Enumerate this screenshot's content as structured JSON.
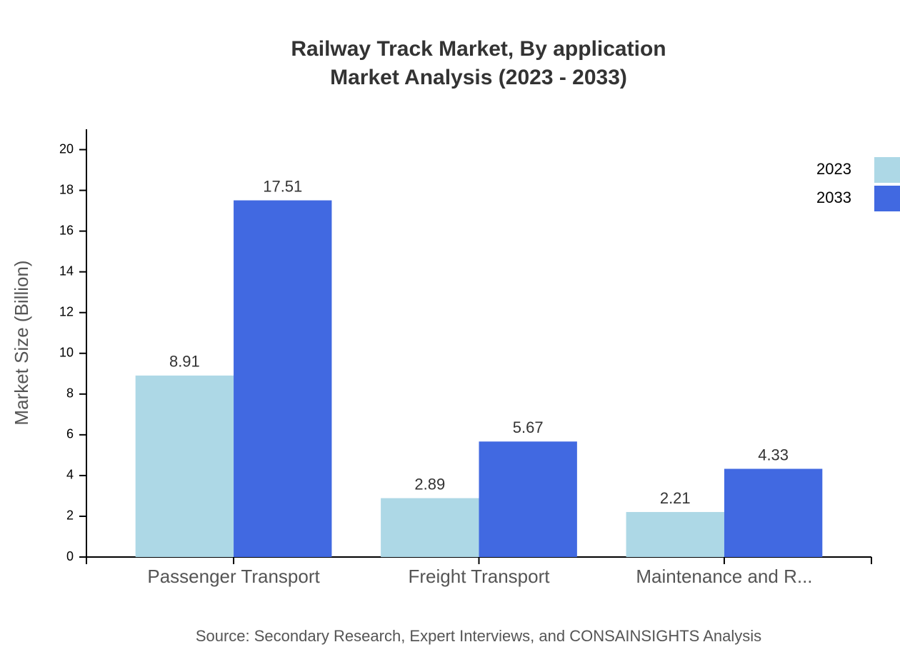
{
  "chart_data": {
    "type": "bar",
    "title": "Railway Track Market, By application",
    "subtitle": "Market Analysis (2023 - 2033)",
    "y_label": "Market Size (Billion)",
    "source": "Source: Secondary Research, Expert Interviews, and CONSAINSIGHTS Analysis",
    "categories": [
      "Passenger Transport",
      "Freight Transport",
      "Maintenance and R..."
    ],
    "series": [
      {
        "name": "2023",
        "color": "#add8e6",
        "values": [
          8.91,
          2.89,
          2.21
        ]
      },
      {
        "name": "2033",
        "color": "#4169e1",
        "values": [
          17.51,
          5.67,
          4.33
        ]
      }
    ],
    "ylim": [
      0,
      21
    ],
    "yticks": [
      0,
      2,
      4,
      6,
      8,
      10,
      12,
      14,
      16,
      18,
      20
    ],
    "legend": "top-right"
  }
}
